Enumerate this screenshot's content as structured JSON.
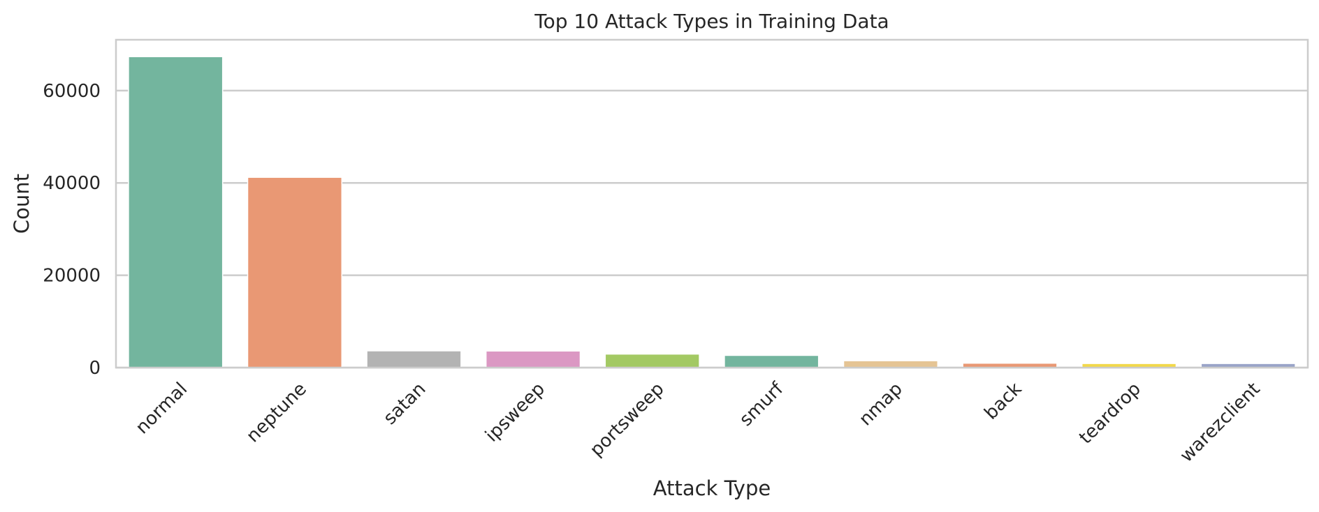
{
  "chart_data": {
    "type": "bar",
    "title": "Top 10 Attack Types in Training Data",
    "xlabel": "Attack Type",
    "ylabel": "Count",
    "categories": [
      "normal",
      "neptune",
      "satan",
      "ipsweep",
      "portsweep",
      "smurf",
      "nmap",
      "back",
      "teardrop",
      "warezclient"
    ],
    "values": [
      67343,
      41214,
      3633,
      3599,
      2931,
      2646,
      1493,
      956,
      892,
      890
    ],
    "colors": [
      "#73b59e",
      "#e99874",
      "#b3b3b3",
      "#db98c3",
      "#a3c963",
      "#73b59e",
      "#e5c494",
      "#e99874",
      "#f2d84a",
      "#9aa4c8"
    ],
    "ylim": [
      0,
      71000
    ],
    "yticks": [
      0,
      20000,
      40000,
      60000
    ],
    "ytick_labels": [
      "0",
      "20000",
      "40000",
      "60000"
    ],
    "grid": true,
    "legend": "none"
  }
}
